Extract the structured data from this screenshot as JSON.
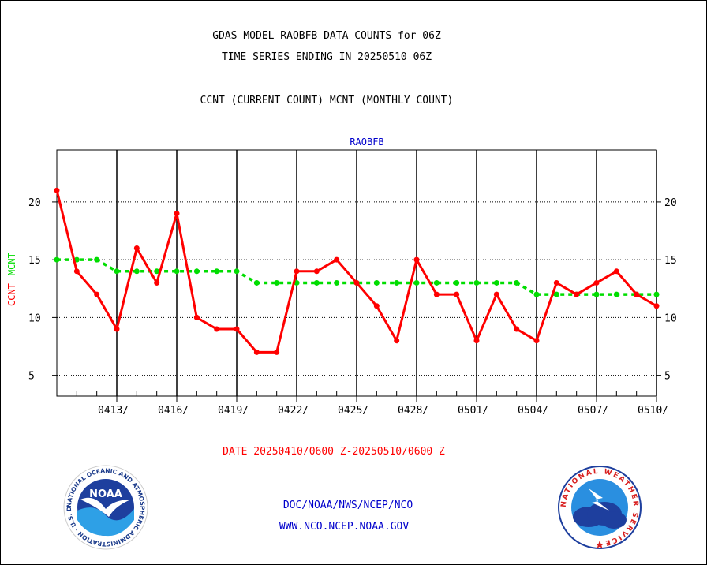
{
  "header": {
    "title_line1": "GDAS MODEL RAOBFB DATA COUNTS for 06Z",
    "title_line2": "TIME SERIES ENDING IN 20250510 06Z",
    "subtitle": "CCNT (CURRENT COUNT) MCNT (MONTHLY COUNT)"
  },
  "footer": {
    "date_range": "DATE 20250410/0600 Z-20250510/0600 Z",
    "org": "DOC/NOAA/NWS/NCEP/NCO",
    "url": "WWW.NCO.NCEP.NOAA.GOV"
  },
  "logos": {
    "noaa": {
      "inner_text": "NOAA",
      "ring_text": "NATIONAL OCEANIC AND ATMOSPHERIC ADMINISTRATION · U.S. DEPARTMENT OF COMMERCE ·"
    },
    "nws": {
      "ring_text": "NATIONAL WEATHER SERVICE"
    }
  },
  "colors": {
    "ccnt": "#ff0000",
    "mcnt": "#00dd00",
    "label_blue": "#0000cc",
    "date_red": "#ff0000"
  },
  "chart_data": {
    "type": "line",
    "title": "RAOBFB",
    "ylabel_parts": [
      "CCNT",
      "MCNT"
    ],
    "ylim": [
      3.2,
      24.5
    ],
    "yticks": [
      5,
      10,
      15,
      20
    ],
    "xtick_labels": [
      "0413/",
      "0416/",
      "0419/",
      "0422/",
      "0425/",
      "0428/",
      "0501/",
      "0504/",
      "0507/",
      "0510/"
    ],
    "grid": true,
    "series": [
      {
        "name": "CCNT",
        "values": [
          21,
          14,
          12,
          9,
          16,
          13,
          19,
          10,
          9,
          9,
          7,
          7,
          14,
          14,
          15,
          13,
          11,
          8,
          15,
          12,
          12,
          8,
          12,
          9,
          8,
          13,
          12,
          13,
          14,
          12,
          11
        ]
      },
      {
        "name": "MCNT",
        "values": [
          15,
          15,
          15,
          14,
          14,
          14,
          14,
          14,
          14,
          14,
          13,
          13,
          13,
          13,
          13,
          13,
          13,
          13,
          13,
          13,
          13,
          13,
          13,
          13,
          12,
          12,
          12,
          12,
          12,
          12,
          12
        ]
      }
    ]
  }
}
